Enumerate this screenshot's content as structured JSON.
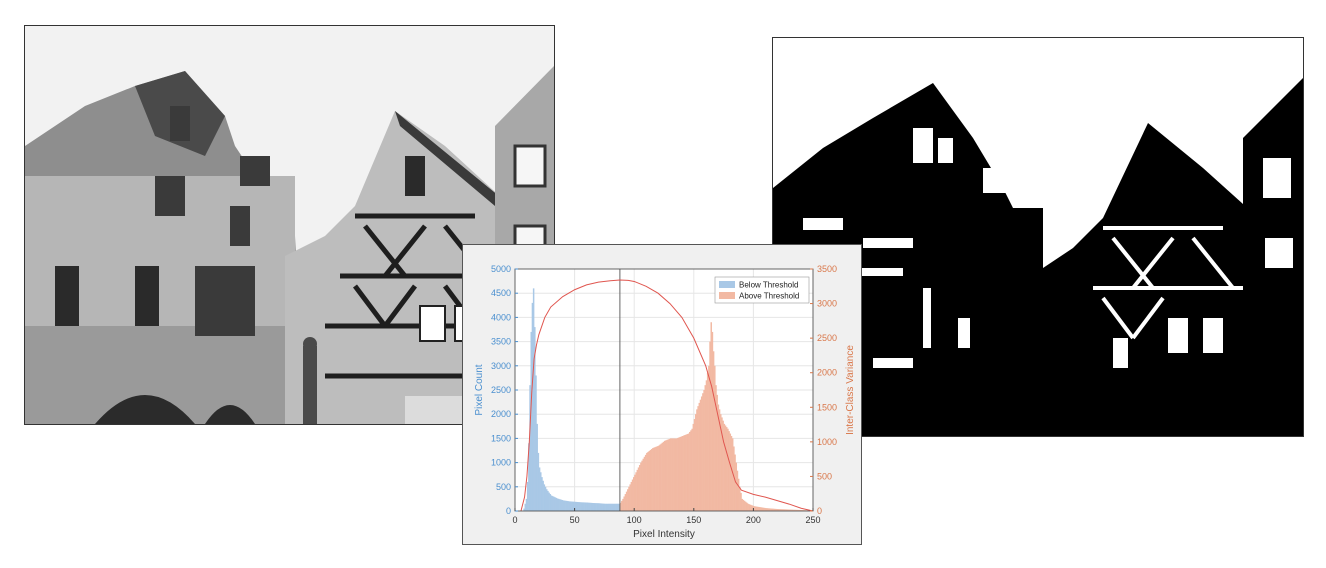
{
  "images": {
    "grayscale": {
      "description_icon": "grayscale-building-photo"
    },
    "binary": {
      "description_icon": "binary-threshold-building-photo"
    }
  },
  "chart_data": {
    "type": "bar",
    "title": "",
    "xlabel": "Pixel Intensity",
    "ylabel": "Pixel Count",
    "y2label": "Inter-Class Variance",
    "xlim": [
      0,
      250
    ],
    "ylim": [
      0,
      5000
    ],
    "y2lim": [
      0,
      3500
    ],
    "xticks": [
      0,
      50,
      100,
      150,
      200,
      250
    ],
    "yticks": [
      0,
      500,
      1000,
      1500,
      2000,
      2500,
      3000,
      3500,
      4000,
      4500,
      5000
    ],
    "y2ticks": [
      0,
      500,
      1000,
      1500,
      2000,
      2500,
      3000,
      3500
    ],
    "threshold": 88,
    "grid": true,
    "legend_position": "top-right",
    "colors": {
      "below": "#a9c8e6",
      "above": "#f2b9a3",
      "variance": "#e0564f",
      "threshold": "#666666",
      "left_axis": "#4a8fcf",
      "right_axis": "#d9774a"
    },
    "series": [
      {
        "name": "Below Threshold",
        "x": [
          7,
          9,
          10,
          11,
          12,
          13,
          14,
          15,
          16,
          17,
          18,
          19,
          20,
          22,
          24,
          26,
          28,
          30,
          35,
          40,
          45,
          50,
          55,
          60,
          65,
          70,
          75,
          80,
          85,
          88
        ],
        "values": [
          50,
          250,
          600,
          1400,
          2600,
          3700,
          4300,
          4600,
          3800,
          2800,
          1800,
          1200,
          900,
          700,
          550,
          450,
          380,
          320,
          260,
          220,
          200,
          190,
          180,
          175,
          165,
          160,
          150,
          150,
          150,
          150
        ]
      },
      {
        "name": "Above Threshold",
        "x": [
          88,
          90,
          95,
          100,
          105,
          110,
          115,
          120,
          125,
          130,
          135,
          140,
          145,
          148,
          150,
          152,
          155,
          158,
          160,
          162,
          163,
          164,
          165,
          166,
          167,
          168,
          170,
          172,
          175,
          178,
          180,
          182,
          185,
          188,
          190,
          195,
          200,
          205,
          210,
          220,
          230,
          240,
          250
        ],
        "values": [
          170,
          250,
          500,
          750,
          1000,
          1200,
          1300,
          1350,
          1450,
          1500,
          1500,
          1550,
          1600,
          1700,
          1900,
          2100,
          2300,
          2500,
          2700,
          3000,
          3500,
          3900,
          3700,
          3300,
          3000,
          2600,
          2200,
          2000,
          1800,
          1700,
          1600,
          1500,
          1000,
          500,
          250,
          150,
          100,
          80,
          60,
          40,
          30,
          20,
          10
        ]
      },
      {
        "name": "Inter-Class Variance",
        "x": [
          5,
          8,
          10,
          12,
          14,
          16,
          18,
          20,
          25,
          30,
          40,
          50,
          60,
          70,
          80,
          88,
          95,
          100,
          110,
          120,
          130,
          140,
          150,
          160,
          165,
          170,
          175,
          180,
          185,
          190,
          200,
          210,
          220,
          230,
          240,
          250
        ],
        "values": [
          0,
          200,
          500,
          1000,
          1700,
          2200,
          2400,
          2550,
          2800,
          2950,
          3100,
          3200,
          3270,
          3310,
          3330,
          3340,
          3335,
          3320,
          3250,
          3150,
          3000,
          2800,
          2500,
          2100,
          1800,
          1400,
          1000,
          700,
          420,
          300,
          240,
          200,
          150,
          100,
          40,
          0
        ]
      }
    ]
  }
}
